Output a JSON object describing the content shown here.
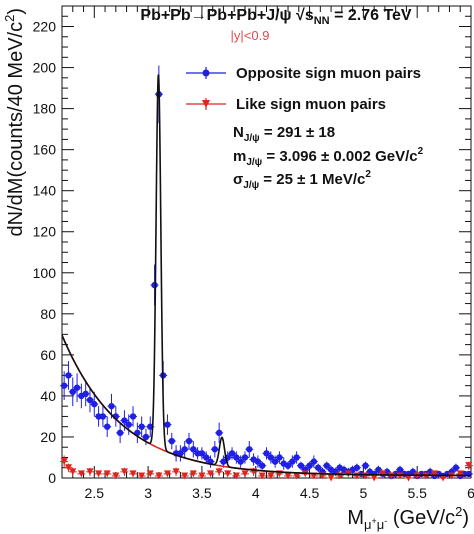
{
  "chart_data": {
    "type": "scatter",
    "title": "Pb+Pb→Pb+Pb+J/ψ √sNN = 2.76 TeV",
    "title_parts": {
      "main": "Pb+Pb→Pb+Pb+J/ψ √s",
      "sub": "NN",
      "tail": " = 2.76 TeV"
    },
    "subtitle": "|y|<0.9",
    "xlabel": "Mμ+μ- (GeV/c2)",
    "xlabel_parts": {
      "base": "M",
      "sub": "μ",
      "sub_sup": "+",
      "sub2": "μ",
      "sub2_sup": "-",
      "tail": " (GeV/c",
      "sup": "2",
      "close": ")"
    },
    "ylabel": "dN/dM(counts/40 MeV/c2)",
    "ylabel_parts": {
      "main": "dN/dM(counts/40 MeV/c",
      "sup": "2",
      "close": ")"
    },
    "xlim": [
      2.2,
      6.0
    ],
    "ylim": [
      0,
      230
    ],
    "x_ticks": [
      2.5,
      3.0,
      3.5,
      4.0,
      4.5,
      5.0,
      5.5,
      6.0
    ],
    "x_tick_labels": [
      "2.5",
      "3",
      "3.5",
      "4",
      "4.5",
      "5",
      "5.5",
      "6"
    ],
    "y_ticks": [
      0,
      20,
      40,
      60,
      80,
      100,
      120,
      140,
      160,
      180,
      200,
      220
    ],
    "y_tick_labels": [
      "0",
      "20",
      "40",
      "60",
      "80",
      "100",
      "120",
      "140",
      "160",
      "180",
      "200",
      "220"
    ],
    "legend_placement": "top-right",
    "stats": [
      {
        "base": "N",
        "sub": "J/ψ",
        "tail": " = 291 ± 18"
      },
      {
        "base": "m",
        "sub": "J/ψ",
        "tail": " = 3.096 ± 0.002 GeV/c",
        "sup": "2"
      },
      {
        "base": "σ",
        "sub": "J/ψ",
        "tail": " = 25 ± 1 MeV/c",
        "sup": "2"
      }
    ],
    "series": [
      {
        "name": "Opposite sign muon pairs",
        "color": "#1f1fe6",
        "marker": "circle",
        "x": [
          2.22,
          2.26,
          2.3,
          2.34,
          2.38,
          2.42,
          2.46,
          2.5,
          2.54,
          2.58,
          2.62,
          2.66,
          2.7,
          2.74,
          2.78,
          2.82,
          2.86,
          2.9,
          2.94,
          2.98,
          3.02,
          3.06,
          3.1,
          3.14,
          3.18,
          3.22,
          3.26,
          3.3,
          3.34,
          3.38,
          3.42,
          3.46,
          3.5,
          3.54,
          3.58,
          3.62,
          3.66,
          3.7,
          3.74,
          3.78,
          3.82,
          3.86,
          3.9,
          3.94,
          3.98,
          4.02,
          4.06,
          4.1,
          4.14,
          4.18,
          4.22,
          4.26,
          4.3,
          4.34,
          4.38,
          4.42,
          4.46,
          4.5,
          4.54,
          4.58,
          4.62,
          4.66,
          4.7,
          4.74,
          4.78,
          4.82,
          4.86,
          4.9,
          4.94,
          4.98,
          5.02,
          5.06,
          5.1,
          5.14,
          5.18,
          5.22,
          5.26,
          5.3,
          5.34,
          5.38,
          5.42,
          5.46,
          5.5,
          5.54,
          5.58,
          5.62,
          5.66,
          5.7,
          5.74,
          5.78,
          5.82,
          5.86,
          5.9,
          5.94,
          5.98
        ],
        "values": [
          45,
          50,
          42,
          44,
          40,
          41,
          38,
          36,
          30,
          30,
          25,
          35,
          30,
          22,
          28,
          26,
          30,
          22,
          25,
          20,
          25,
          94,
          187,
          50,
          26,
          18,
          12,
          12,
          14,
          18,
          14,
          12,
          12,
          10,
          8,
          14,
          22,
          8,
          10,
          12,
          10,
          8,
          10,
          14,
          9,
          8,
          6,
          12,
          10,
          8,
          10,
          7,
          6,
          8,
          10,
          6,
          4,
          6,
          8,
          5,
          3,
          6,
          4,
          3,
          5,
          4,
          3,
          4,
          5,
          2,
          6,
          3,
          2,
          4,
          2,
          3,
          1,
          2,
          4,
          2,
          2,
          3,
          1,
          2,
          2,
          3,
          1,
          2,
          1,
          2,
          3,
          5,
          1,
          2,
          2
        ],
        "errors": [
          7,
          7,
          7,
          7,
          6,
          6,
          6,
          6,
          5,
          5,
          5,
          6,
          5,
          5,
          5,
          5,
          5,
          5,
          5,
          4,
          5,
          10,
          14,
          7,
          5,
          4,
          4,
          4,
          4,
          4,
          4,
          3,
          3,
          3,
          3,
          4,
          5,
          3,
          3,
          3,
          3,
          3,
          3,
          4,
          3,
          3,
          2,
          3,
          3,
          3,
          3,
          3,
          2,
          3,
          3,
          2,
          2,
          2,
          3,
          2,
          2,
          2,
          2,
          2,
          2,
          2,
          2,
          2,
          2,
          1,
          2,
          2,
          1,
          2,
          1,
          2,
          1,
          1,
          2,
          1,
          1,
          2,
          1,
          1,
          1,
          2,
          1,
          1,
          1,
          1,
          2,
          2,
          1,
          1,
          1
        ]
      },
      {
        "name": "Like sign muon pairs",
        "color": "#e0241e",
        "marker": "triangle-down",
        "x": [
          2.22,
          2.26,
          2.3,
          2.38,
          2.46,
          2.54,
          2.62,
          2.7,
          2.78,
          2.86,
          2.94,
          3.02,
          3.1,
          3.18,
          3.26,
          3.34,
          3.42,
          3.5,
          3.58,
          3.66,
          3.74,
          3.82,
          3.9,
          3.98,
          4.06,
          4.14,
          4.22,
          4.3,
          4.38,
          4.46,
          4.54,
          4.62,
          4.7,
          4.78,
          4.86,
          4.94,
          5.02,
          5.1,
          5.18,
          5.26,
          5.34,
          5.42,
          5.5,
          5.58,
          5.66,
          5.74,
          5.82,
          5.9,
          5.98
        ],
        "values": [
          8,
          5,
          3,
          2,
          3,
          2,
          2,
          1,
          3,
          2,
          1,
          2,
          1,
          2,
          3,
          1,
          2,
          1,
          2,
          3,
          2,
          1,
          2,
          3,
          1,
          1,
          2,
          1,
          1,
          2,
          1,
          1,
          0,
          1,
          2,
          1,
          1,
          0,
          2,
          1,
          1,
          0,
          1,
          1,
          2,
          0,
          1,
          2,
          6
        ],
        "errors": [
          3,
          2,
          2,
          1,
          2,
          1,
          1,
          1,
          2,
          1,
          1,
          1,
          1,
          1,
          2,
          1,
          1,
          1,
          1,
          2,
          1,
          1,
          1,
          2,
          1,
          1,
          1,
          1,
          1,
          1,
          1,
          1,
          1,
          1,
          1,
          1,
          1,
          1,
          1,
          1,
          1,
          1,
          1,
          1,
          1,
          1,
          1,
          1,
          2
        ]
      }
    ],
    "fit_curves": {
      "background_color": "#e0241e",
      "total_color": "#111111"
    }
  }
}
